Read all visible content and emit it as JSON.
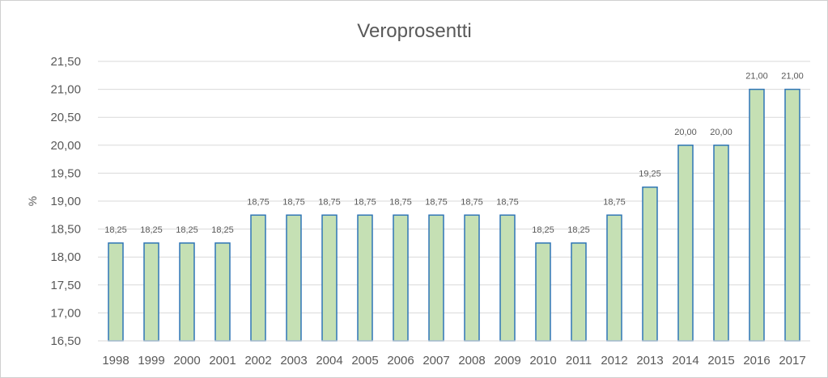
{
  "chart_data": {
    "type": "bar",
    "title": "Veroprosentti",
    "xlabel": "",
    "ylabel": "%",
    "categories": [
      "1998",
      "1999",
      "2000",
      "2001",
      "2002",
      "2003",
      "2004",
      "2005",
      "2006",
      "2007",
      "2008",
      "2009",
      "2010",
      "2011",
      "2012",
      "2013",
      "2014",
      "2015",
      "2016",
      "2017"
    ],
    "values": [
      18.25,
      18.25,
      18.25,
      18.25,
      18.75,
      18.75,
      18.75,
      18.75,
      18.75,
      18.75,
      18.75,
      18.75,
      18.25,
      18.25,
      18.75,
      19.25,
      20.0,
      20.0,
      21.0,
      21.0
    ],
    "data_labels": [
      "18,25",
      "18,25",
      "18,25",
      "18,25",
      "18,75",
      "18,75",
      "18,75",
      "18,75",
      "18,75",
      "18,75",
      "18,75",
      "18,75",
      "18,25",
      "18,25",
      "18,75",
      "19,25",
      "20,00",
      "20,00",
      "21,00",
      "21,00"
    ],
    "y_ticks": [
      "16,50",
      "17,00",
      "17,50",
      "18,00",
      "18,50",
      "19,00",
      "19,50",
      "20,00",
      "20,50",
      "21,00",
      "21,50"
    ],
    "ylim": [
      16.5,
      21.5
    ],
    "grid": true,
    "legend": "none",
    "colors": {
      "bar_fill": "#c5e0b4",
      "bar_stroke": "#2e75b6",
      "grid": "#d9d9d9",
      "text": "#595959"
    }
  }
}
